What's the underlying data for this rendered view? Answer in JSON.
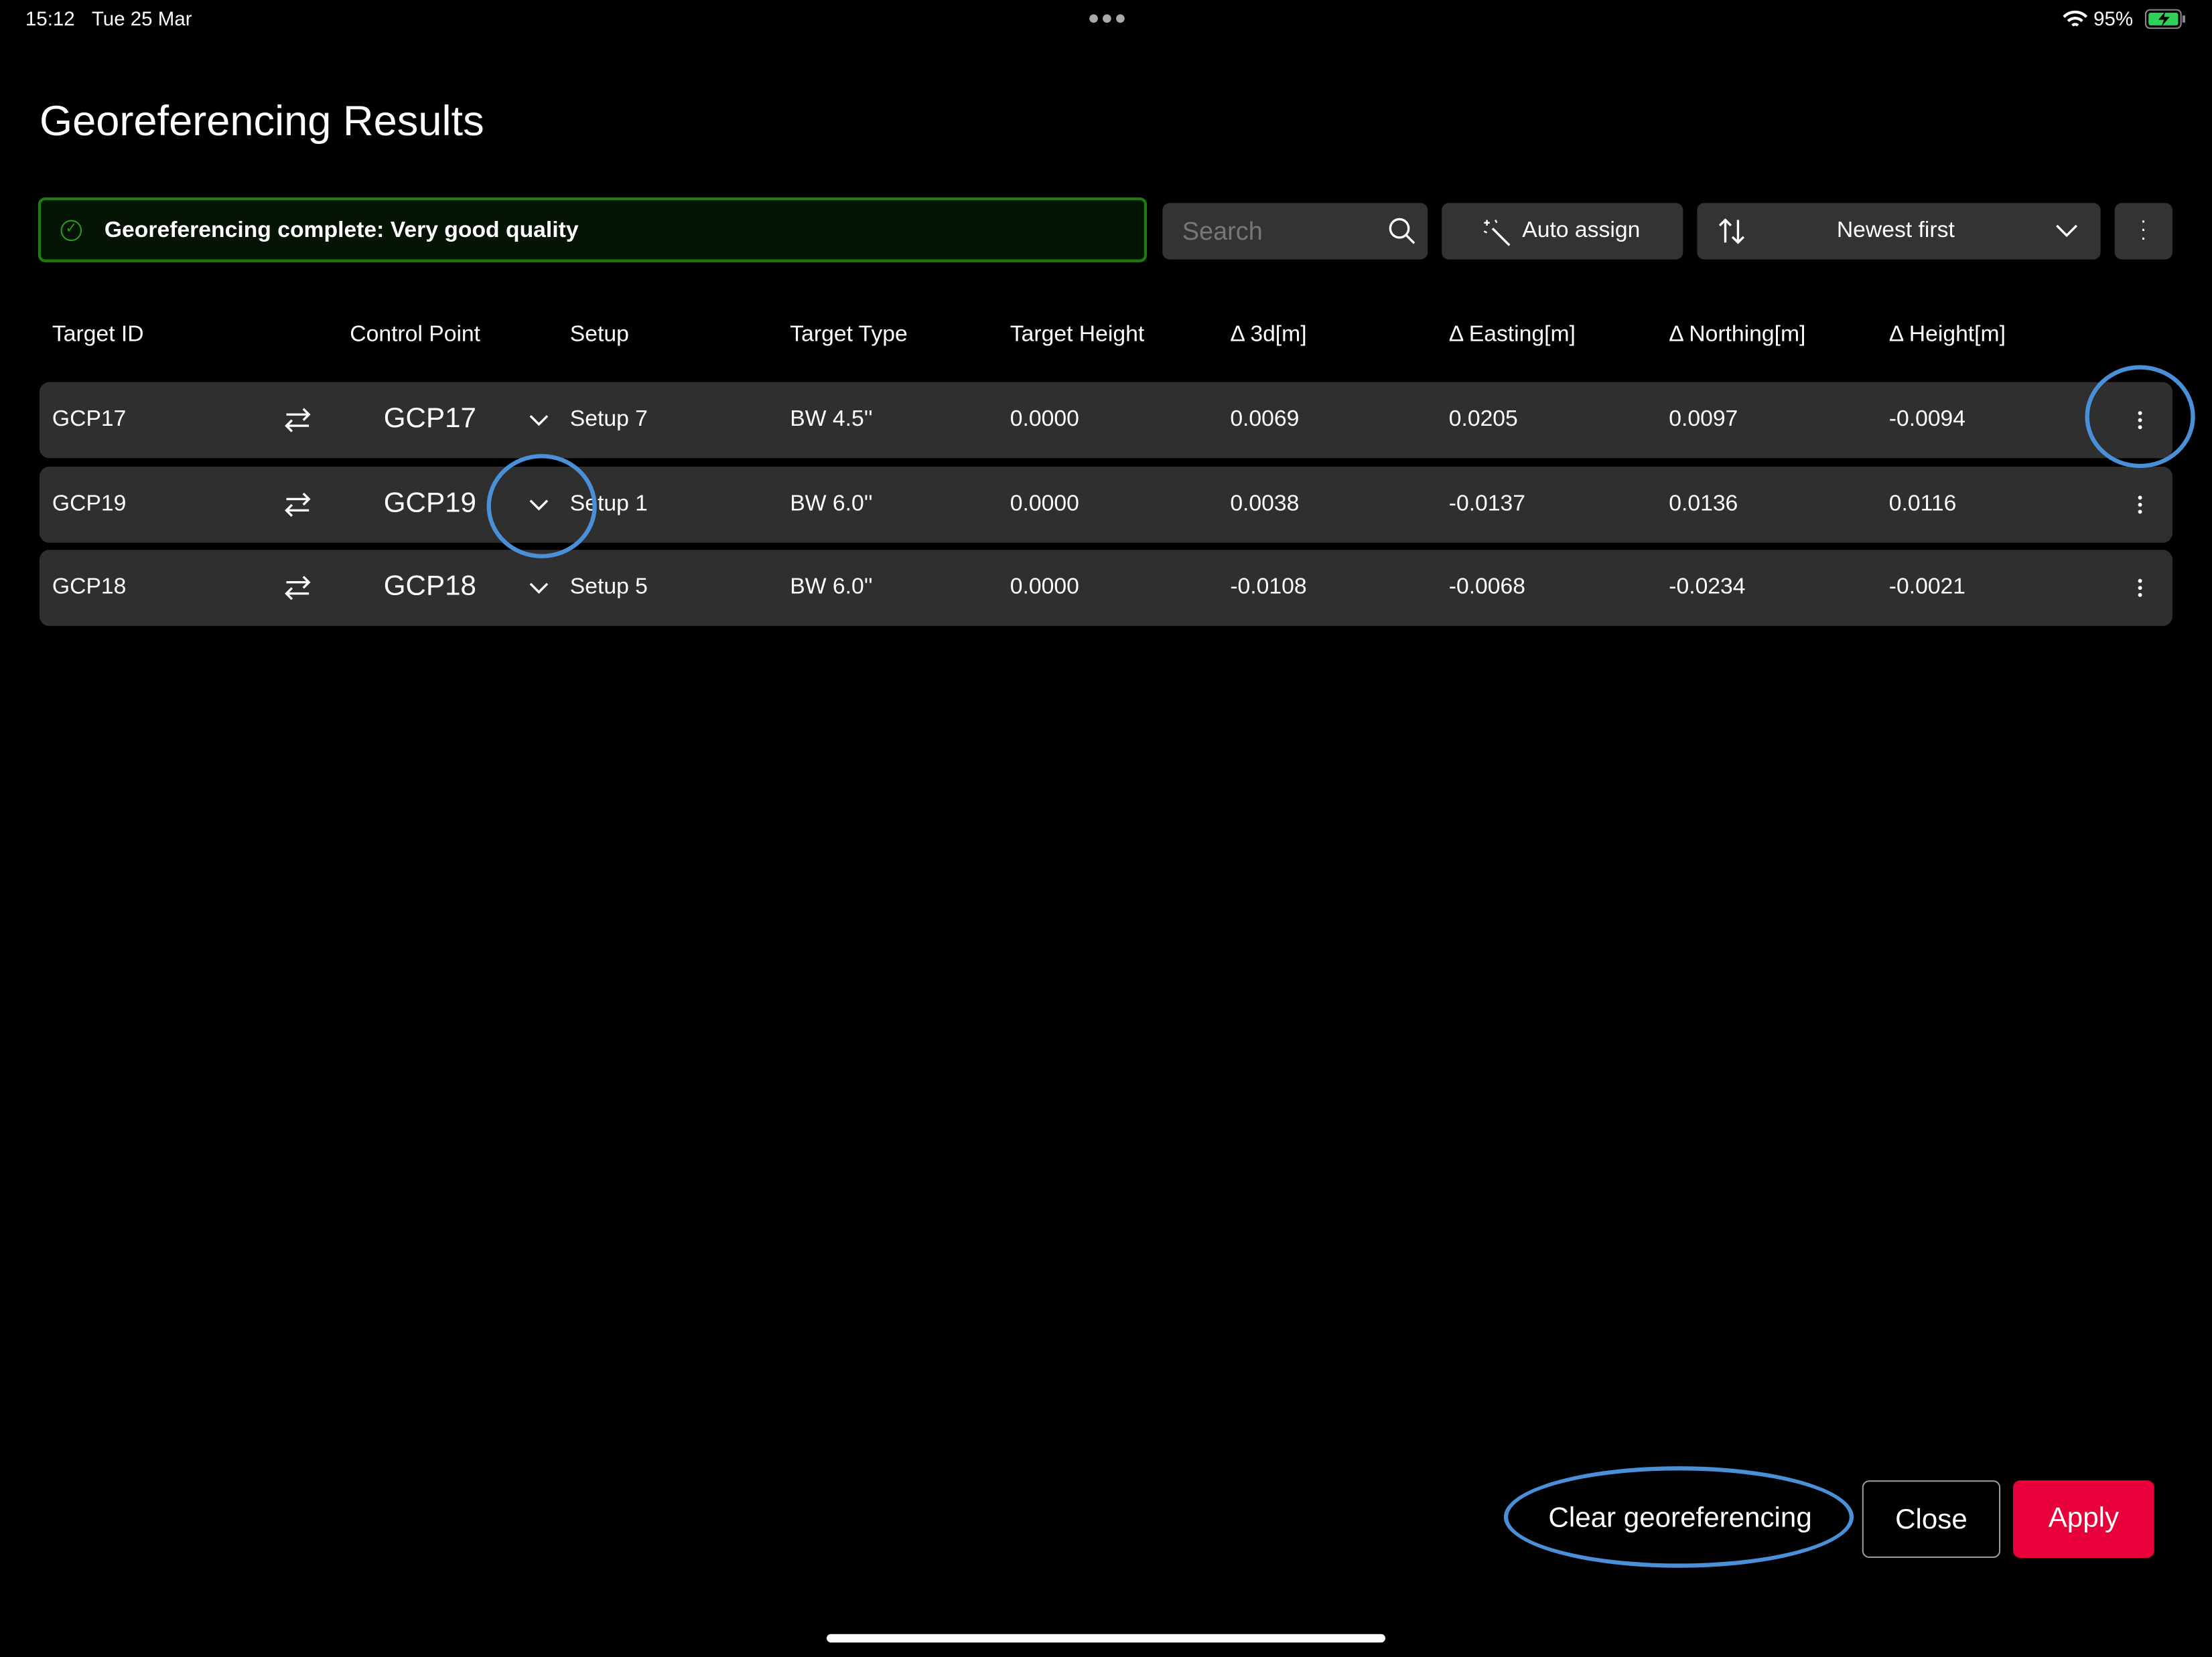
{
  "status_bar": {
    "time": "15:12",
    "date": "Tue 25 Mar",
    "battery": "95%",
    "icons": [
      "wifi-icon",
      "battery-charging-icon"
    ]
  },
  "title": "Georeferencing Results",
  "banner": {
    "text": "Georeferencing complete: Very good quality",
    "icon": "check-circle-icon",
    "color": "#1f7a10"
  },
  "toolbar": {
    "search_placeholder": "Search",
    "auto_assign": "Auto assign",
    "sort": "Newest first"
  },
  "table": {
    "headers": [
      "Target ID",
      "Control Point",
      "Setup",
      "Target Type",
      "Target Height",
      "Δ 3d[m]",
      "Δ Easting[m]",
      "Δ Northing[m]",
      "Δ Height[m]"
    ],
    "rows": [
      {
        "target_id": "GCP17",
        "control_point": "GCP17",
        "setup": "Setup 7",
        "type": "BW 4.5''",
        "height": "0.0000",
        "d3d": "0.0069",
        "easting": "0.0205",
        "northing": "0.0097",
        "dheight": "-0.0094"
      },
      {
        "target_id": "GCP19",
        "control_point": "GCP19",
        "setup": "Setup 1",
        "type": "BW 6.0''",
        "height": "0.0000",
        "d3d": "0.0038",
        "easting": "-0.0137",
        "northing": "0.0136",
        "dheight": "0.0116"
      },
      {
        "target_id": "GCP18",
        "control_point": "GCP18",
        "setup": "Setup 5",
        "type": "BW 6.0''",
        "height": "0.0000",
        "d3d": "-0.0108",
        "easting": "-0.0068",
        "northing": "-0.0234",
        "dheight": "-0.0021"
      }
    ]
  },
  "footer": {
    "clear": "Clear georeferencing",
    "close": "Close",
    "apply": "Apply",
    "apply_color": "#e8003a"
  },
  "highlight_color": "#4a90d9"
}
